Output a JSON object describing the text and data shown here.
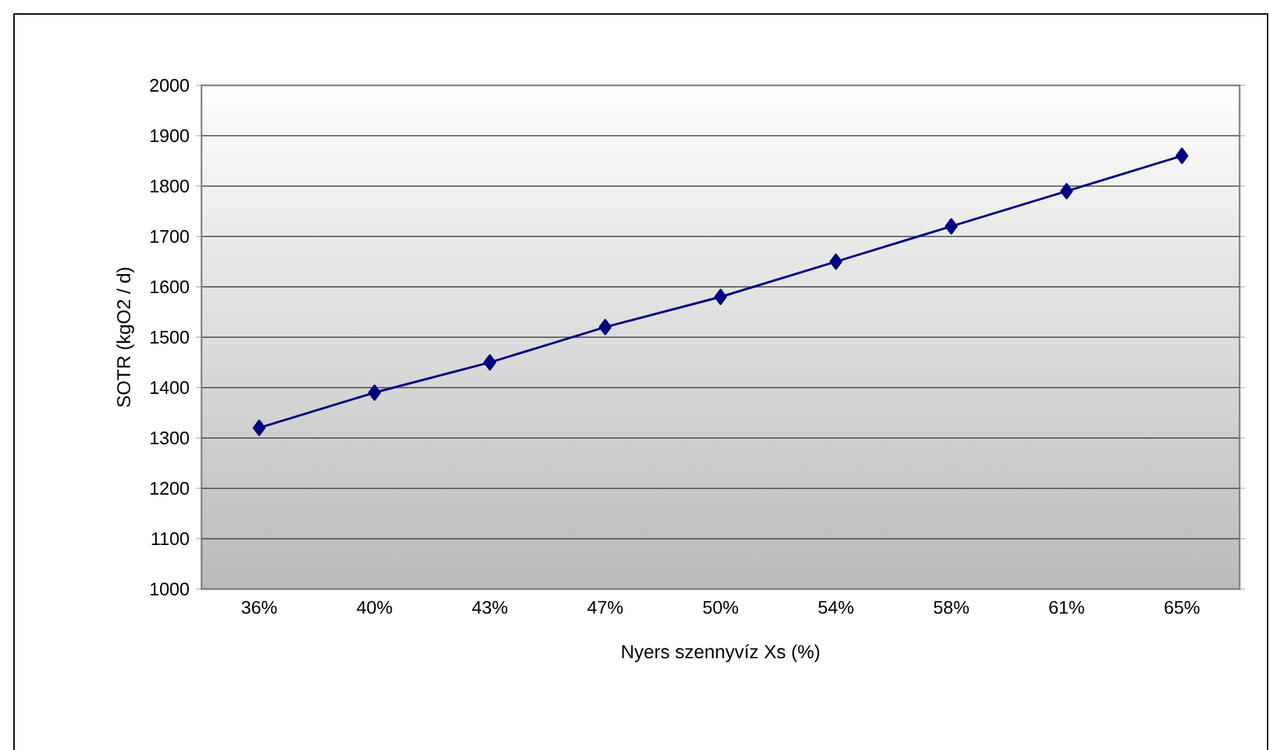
{
  "chart_data": {
    "type": "line",
    "xlabel": "Nyers szennyvíz Xs (%)",
    "ylabel": "SOTR (kgO2 / d)",
    "categories": [
      "36%",
      "40%",
      "43%",
      "47%",
      "50%",
      "54%",
      "58%",
      "61%",
      "65%"
    ],
    "series": [
      {
        "color": "#000080",
        "values": [
          1320,
          1390,
          1450,
          1520,
          1580,
          1650,
          1720,
          1790,
          1860
        ]
      }
    ],
    "ylim": [
      1000,
      2000
    ],
    "yticks": [
      1000,
      1100,
      1200,
      1300,
      1400,
      1500,
      1600,
      1700,
      1800,
      1900,
      2000
    ],
    "grid": "y",
    "marker": "diamond",
    "line_style": "solid"
  }
}
